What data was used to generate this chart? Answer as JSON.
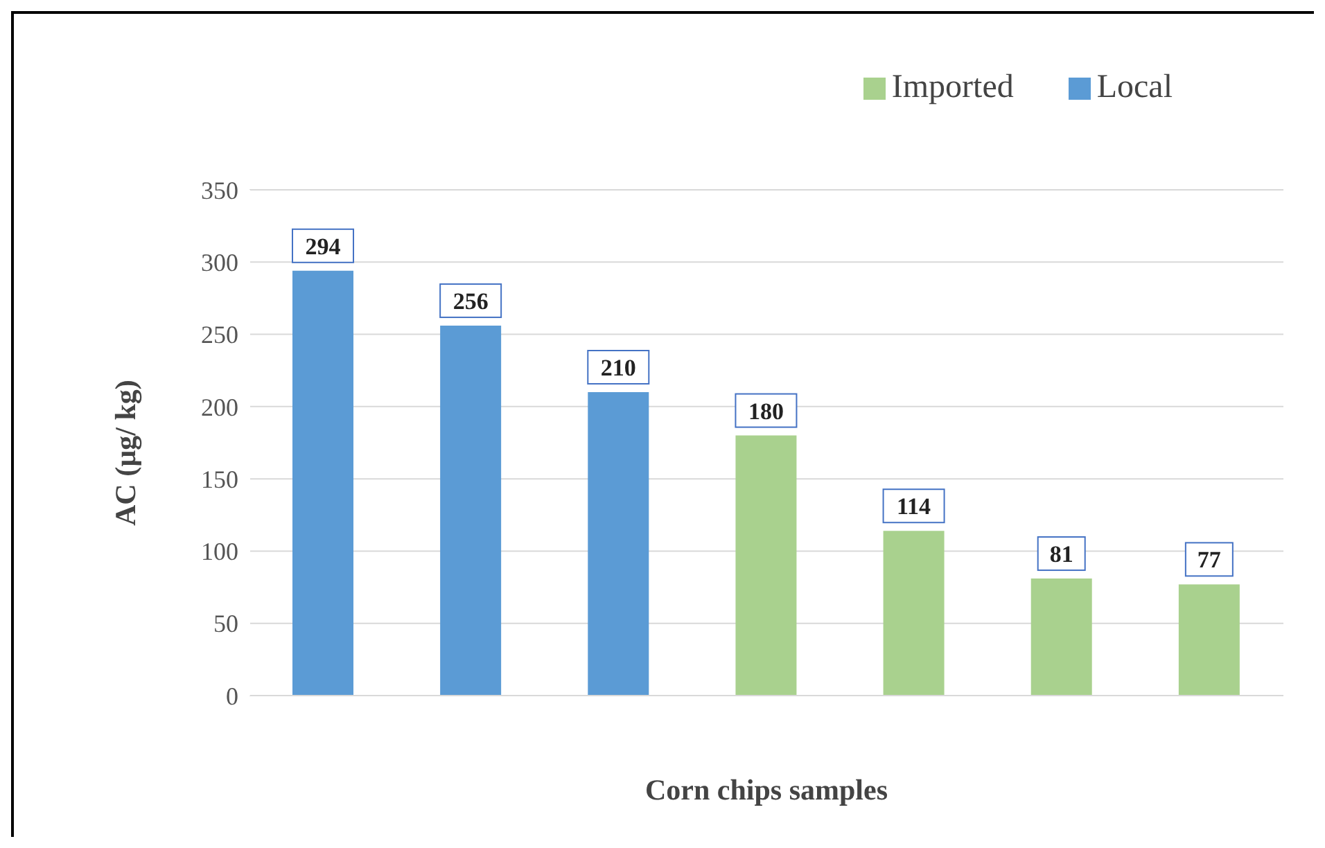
{
  "chart_data": {
    "type": "bar",
    "xlabel": "Corn chips samples",
    "ylabel": "AC (µg/ kg)",
    "categories": [
      null,
      null,
      null,
      null,
      null,
      null,
      null
    ],
    "series": [
      {
        "name": "Local",
        "color": "#5b9bd5",
        "values": [
          294,
          256,
          210,
          null,
          null,
          null,
          null
        ]
      },
      {
        "name": "Imported",
        "color": "#a9d18e",
        "values": [
          null,
          null,
          null,
          180,
          114,
          81,
          77
        ]
      }
    ],
    "stacked": true,
    "ylim": [
      0,
      350
    ],
    "yticks": [
      0,
      50,
      100,
      150,
      200,
      250,
      300,
      350
    ],
    "grid": "y",
    "legend": "top right",
    "data_labels": true
  }
}
